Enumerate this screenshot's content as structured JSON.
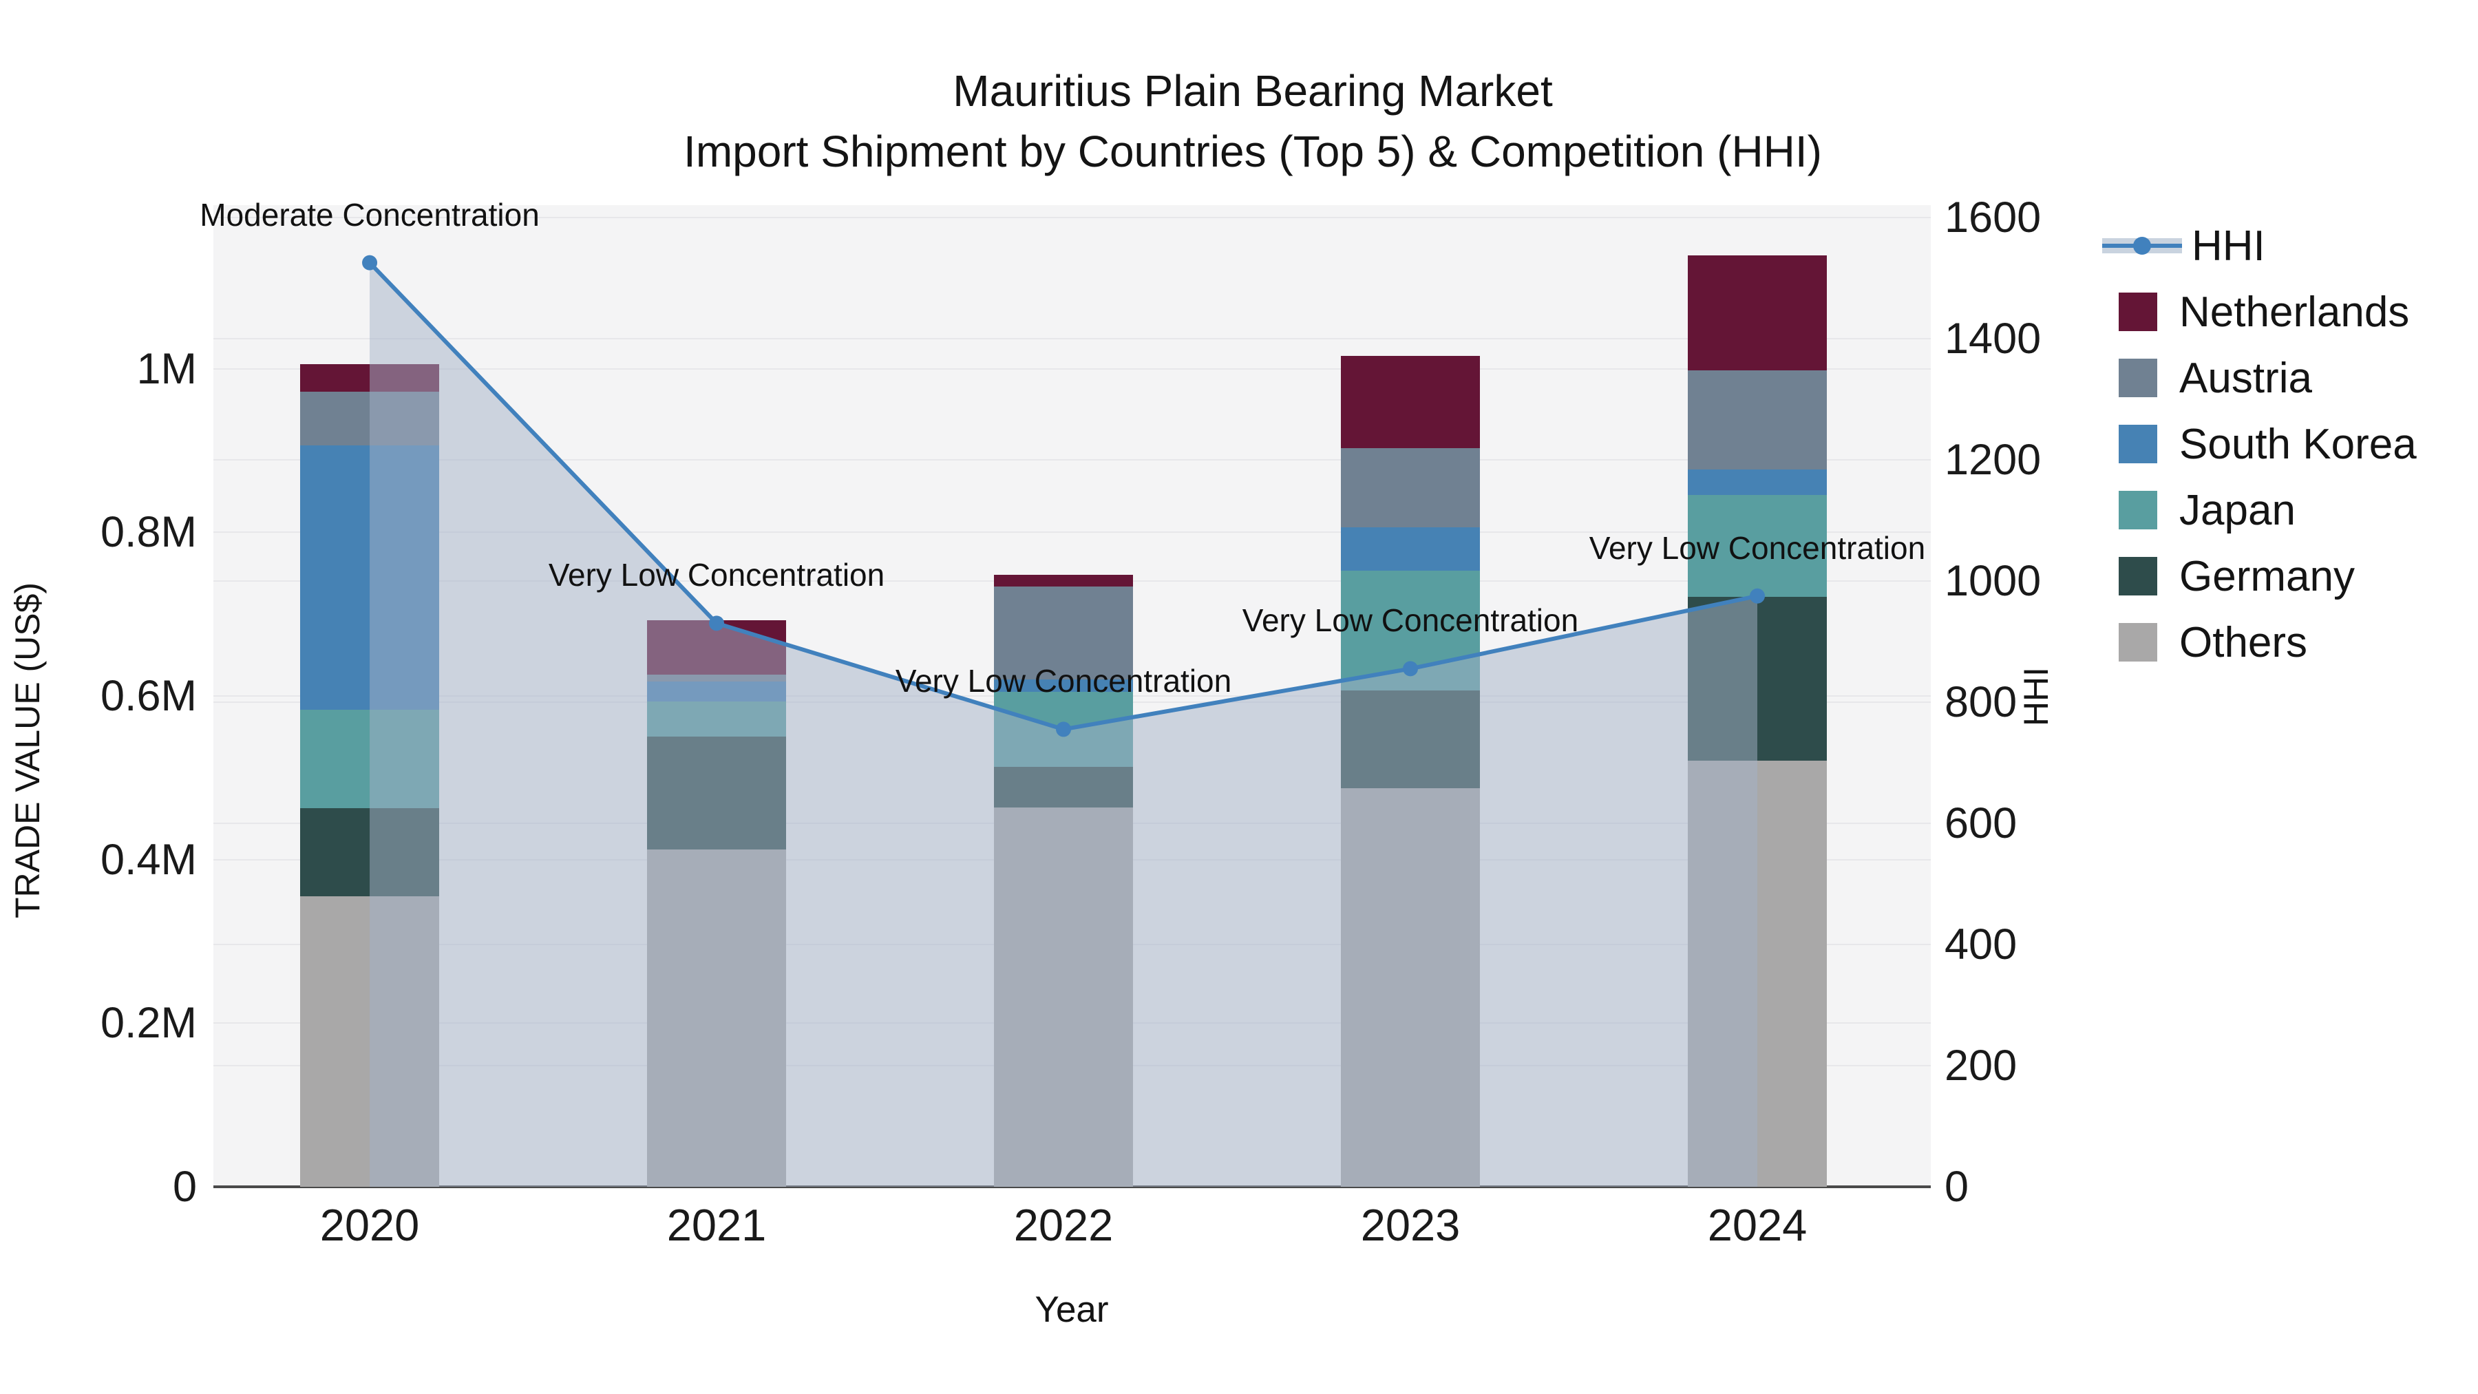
{
  "title": {
    "line1": "Mauritius Plain Bearing Market",
    "line2": "Import Shipment by Countries (Top 5) & Competition (HHI)"
  },
  "chart_data": {
    "type": "bar",
    "stacked": true,
    "categories": [
      "2020",
      "2021",
      "2022",
      "2023",
      "2024"
    ],
    "series": [
      {
        "name": "Others",
        "color": "#A9A8A8",
        "values": [
          355000,
          412000,
          464000,
          487000,
          521000
        ]
      },
      {
        "name": "Germany",
        "color": "#2E4C4B",
        "values": [
          108000,
          138000,
          49000,
          120000,
          200000
        ]
      },
      {
        "name": "Japan",
        "color": "#599EA0",
        "values": [
          120000,
          43000,
          92000,
          146000,
          125000
        ]
      },
      {
        "name": "South Korea",
        "color": "#4682B4",
        "values": [
          323000,
          25000,
          15000,
          53000,
          31000
        ]
      },
      {
        "name": "Austria",
        "color": "#708192",
        "values": [
          66000,
          8000,
          114000,
          97000,
          121000
        ]
      },
      {
        "name": "Netherlands",
        "color": "#641536",
        "values": [
          34000,
          67000,
          14000,
          113000,
          141000
        ]
      }
    ],
    "line": {
      "name": "HHI",
      "color": "#4181BD",
      "area_fill": "rgba(164,178,200,0.5)",
      "values": [
        1525,
        930,
        755,
        855,
        975
      ],
      "annotations": [
        "Moderate Concentration",
        "Very Low Concentration",
        "Very Low Concentration",
        "Very Low Concentration",
        "Very Low Concentration"
      ]
    },
    "left_axis": {
      "label": "TRADE VALUE (US$)",
      "max": 1200000,
      "ticks": [
        {
          "value": 0,
          "label": "0"
        },
        {
          "value": 200000,
          "label": "0.2M"
        },
        {
          "value": 400000,
          "label": "0.4M"
        },
        {
          "value": 600000,
          "label": "0.6M"
        },
        {
          "value": 800000,
          "label": "0.8M"
        },
        {
          "value": 1000000,
          "label": "1M"
        }
      ]
    },
    "right_axis": {
      "label": "HHI",
      "max": 1620,
      "ticks": [
        0,
        200,
        400,
        600,
        800,
        1000,
        1200,
        1400,
        1600
      ]
    },
    "xlabel": "Year",
    "legend_order": [
      "HHI",
      "Netherlands",
      "Austria",
      "South Korea",
      "Japan",
      "Germany",
      "Others"
    ],
    "grid": true,
    "legend_position": "outside-top-right"
  }
}
